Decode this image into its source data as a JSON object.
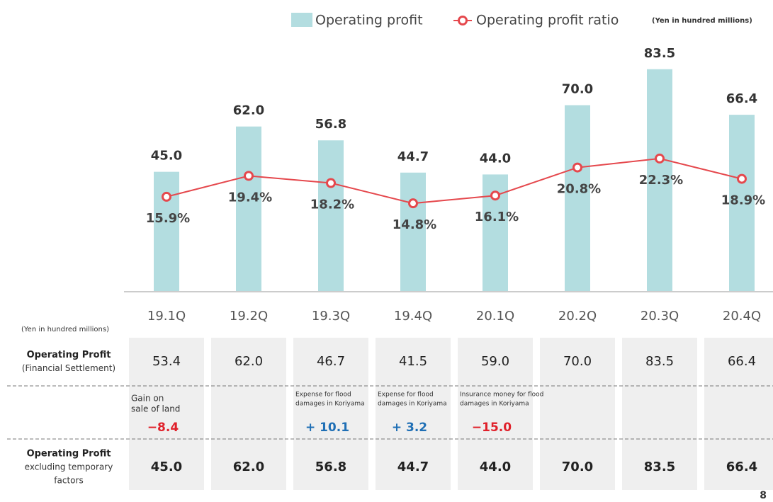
{
  "chart_data": {
    "type": "bar_line",
    "categories": [
      "19.1Q",
      "19.2Q",
      "19.3Q",
      "19.4Q",
      "20.1Q",
      "20.2Q",
      "20.3Q",
      "20.4Q"
    ],
    "unit_note": "(Yen in hundred millions)",
    "ylim": [
      0,
      93
    ],
    "y2lim": [
      0,
      41.5
    ],
    "series": [
      {
        "name": "Operating profit",
        "type": "bar",
        "color": "#b3dde0",
        "values": [
          45.0,
          62.0,
          56.8,
          44.7,
          44.0,
          70.0,
          83.5,
          66.4
        ],
        "value_labels": [
          "45.0",
          "62.0",
          "56.8",
          "44.7",
          "44.0",
          "70.0",
          "83.5",
          "66.4"
        ]
      },
      {
        "name": "Operating profit ratio",
        "type": "line",
        "axis": "y2",
        "color": "#e5484d",
        "values": [
          15.9,
          19.4,
          18.2,
          14.8,
          16.1,
          20.8,
          22.3,
          18.9
        ],
        "value_labels": [
          "15.9%",
          "19.4%",
          "18.2%",
          "14.8%",
          "16.1%",
          "20.8%",
          "22.3%",
          "18.9%"
        ]
      }
    ]
  },
  "table": {
    "unit_note": "(Yen in hundred millions)",
    "rows": [
      {
        "label": [
          "Operating Profit",
          "(Financial Settlement)"
        ],
        "cells": [
          "53.4",
          "62.0",
          "46.7",
          "41.5",
          "59.0",
          "70.0",
          "83.5",
          "66.4"
        ]
      },
      {
        "cells": [
          {
            "note": [
              "Gain on",
              "sale of land"
            ],
            "value": "−8.4",
            "color": "#e0202a"
          },
          null,
          {
            "note": [
              "Expense for flood",
              "damages in Koriyama"
            ],
            "value": "+ 10.1",
            "color": "#1f6fb5"
          },
          {
            "note": [
              "Expense for flood",
              "damages in Koriyama"
            ],
            "value": "+ 3.2",
            "color": "#1f6fb5"
          },
          {
            "note": [
              "Insurance money for flood",
              "damages in Koriyama"
            ],
            "value": "−15.0",
            "color": "#e0202a"
          },
          null,
          null,
          null
        ]
      },
      {
        "label": [
          "Operating Profit",
          "excluding temporary",
          "factors"
        ],
        "cells": [
          "45.0",
          "62.0",
          "56.8",
          "44.7",
          "44.0",
          "70.0",
          "83.5",
          "66.4"
        ]
      }
    ]
  },
  "page_number": "8"
}
